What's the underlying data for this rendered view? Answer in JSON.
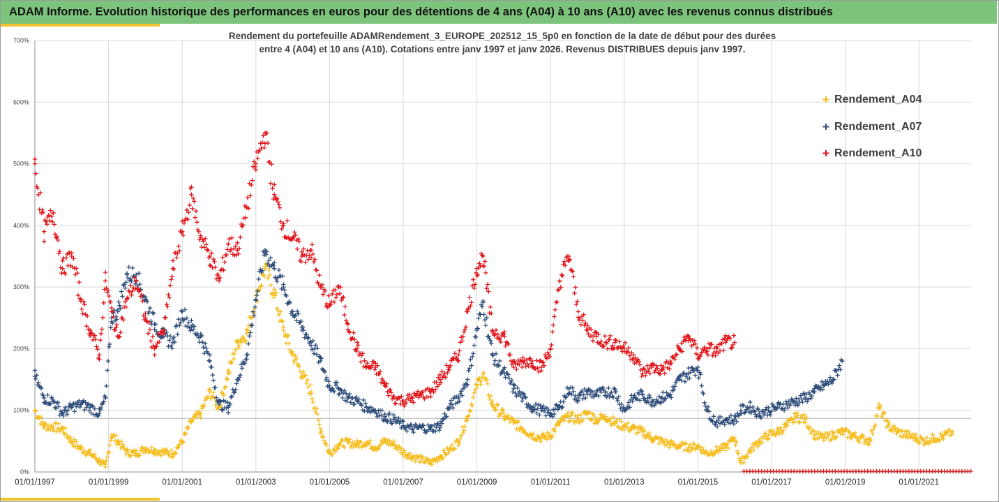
{
  "header": {
    "title": "ADAM Informe. Evolution historique des performances en euros pour des détentions de 4 ans (A04) à 10 ans (A10) avec les revenus connus distribués"
  },
  "colors": {
    "banner": "#7cc47c",
    "accent": "#f2c12e",
    "A04": "#f5bd1f",
    "A07": "#2f4d7a",
    "A10": "#e0161b"
  },
  "chart_data": {
    "type": "scatter",
    "title_lines": [
      "Rendement du portefeuille ADAMRendement_3_EUROPE_202512_15_5p0  en fonction de la date de début pour des durées",
      "entre 4 (A04) et 10 ans (A10). Cotations entre janv 1997 et janv 2026. Revenus DISTRIBUES depuis janv 1997."
    ],
    "x_type": "date",
    "xlim": [
      "1997-01-01",
      "2022-06-01"
    ],
    "x_ticks": [
      "01/01/1997",
      "01/01/1999",
      "01/01/2001",
      "01/01/2003",
      "01/01/2005",
      "01/01/2007",
      "01/01/2009",
      "01/01/2011",
      "01/01/2013",
      "01/01/2015",
      "01/01/2017",
      "01/01/2019",
      "01/01/2021"
    ],
    "ylim": [
      0,
      7
    ],
    "y_ticks": [
      "0%",
      "100%",
      "200%",
      "300%",
      "400%",
      "500%",
      "600%",
      "700%"
    ],
    "y_tick_values": [
      0,
      1,
      2,
      3,
      4,
      5,
      6,
      7
    ],
    "grid": true,
    "legend_position": "right",
    "marker": "+",
    "series": [
      {
        "name": "Rendement_A04",
        "color": "#f5bd1f",
        "points": [
          [
            "1997-01",
            1.0
          ],
          [
            "1997-04",
            0.75
          ],
          [
            "1997-07",
            0.73
          ],
          [
            "1997-10",
            0.7
          ],
          [
            "1998-01",
            0.5
          ],
          [
            "1998-04",
            0.38
          ],
          [
            "1998-07",
            0.3
          ],
          [
            "1998-10",
            0.18
          ],
          [
            "1998-12",
            0.08
          ],
          [
            "1999-02",
            0.6
          ],
          [
            "1999-04",
            0.5
          ],
          [
            "1999-07",
            0.32
          ],
          [
            "1999-10",
            0.3
          ],
          [
            "2000-01",
            0.38
          ],
          [
            "2000-04",
            0.35
          ],
          [
            "2000-07",
            0.32
          ],
          [
            "2000-10",
            0.3
          ],
          [
            "2001-01",
            0.5
          ],
          [
            "2001-04",
            0.82
          ],
          [
            "2001-07",
            0.95
          ],
          [
            "2001-10",
            1.3
          ],
          [
            "2002-01",
            1.05
          ],
          [
            "2002-04",
            1.6
          ],
          [
            "2002-07",
            2.1
          ],
          [
            "2002-10",
            2.25
          ],
          [
            "2003-01",
            2.8
          ],
          [
            "2003-04",
            3.3
          ],
          [
            "2003-07",
            2.9
          ],
          [
            "2003-10",
            2.3
          ],
          [
            "2004-01",
            1.9
          ],
          [
            "2004-04",
            1.6
          ],
          [
            "2004-07",
            1.3
          ],
          [
            "2004-10",
            0.7
          ],
          [
            "2005-01",
            0.3
          ],
          [
            "2005-04",
            0.45
          ],
          [
            "2005-07",
            0.48
          ],
          [
            "2005-10",
            0.45
          ],
          [
            "2006-01",
            0.48
          ],
          [
            "2006-04",
            0.4
          ],
          [
            "2006-07",
            0.5
          ],
          [
            "2006-10",
            0.45
          ],
          [
            "2007-01",
            0.32
          ],
          [
            "2007-04",
            0.25
          ],
          [
            "2007-07",
            0.2
          ],
          [
            "2007-10",
            0.15
          ],
          [
            "2008-01",
            0.25
          ],
          [
            "2008-04",
            0.35
          ],
          [
            "2008-07",
            0.5
          ],
          [
            "2008-10",
            0.9
          ],
          [
            "2009-01",
            1.4
          ],
          [
            "2009-03",
            1.6
          ],
          [
            "2009-06",
            1.1
          ],
          [
            "2009-10",
            0.9
          ],
          [
            "2010-01",
            0.8
          ],
          [
            "2010-04",
            0.7
          ],
          [
            "2010-07",
            0.6
          ],
          [
            "2010-10",
            0.55
          ],
          [
            "2011-01",
            0.6
          ],
          [
            "2011-04",
            0.8
          ],
          [
            "2011-07",
            0.9
          ],
          [
            "2011-10",
            0.85
          ],
          [
            "2012-01",
            0.95
          ],
          [
            "2012-04",
            0.85
          ],
          [
            "2012-07",
            0.9
          ],
          [
            "2012-10",
            0.8
          ],
          [
            "2013-01",
            0.75
          ],
          [
            "2013-04",
            0.7
          ],
          [
            "2013-07",
            0.65
          ],
          [
            "2013-10",
            0.55
          ],
          [
            "2014-01",
            0.5
          ],
          [
            "2014-04",
            0.45
          ],
          [
            "2014-07",
            0.42
          ],
          [
            "2014-10",
            0.4
          ],
          [
            "2015-01",
            0.42
          ],
          [
            "2015-04",
            0.3
          ],
          [
            "2015-07",
            0.35
          ],
          [
            "2015-10",
            0.4
          ],
          [
            "2016-01",
            0.55
          ],
          [
            "2016-03",
            0.15
          ],
          [
            "2016-06",
            0.35
          ],
          [
            "2016-09",
            0.5
          ],
          [
            "2016-12",
            0.6
          ],
          [
            "2017-03",
            0.65
          ],
          [
            "2017-06",
            0.75
          ],
          [
            "2017-09",
            0.9
          ],
          [
            "2017-12",
            0.85
          ],
          [
            "2018-03",
            0.6
          ],
          [
            "2018-06",
            0.55
          ],
          [
            "2018-09",
            0.6
          ],
          [
            "2018-12",
            0.65
          ],
          [
            "2019-03",
            0.6
          ],
          [
            "2019-06",
            0.55
          ],
          [
            "2019-09",
            0.5
          ],
          [
            "2019-12",
            1.05
          ],
          [
            "2020-03",
            0.75
          ],
          [
            "2020-06",
            0.65
          ],
          [
            "2020-09",
            0.6
          ],
          [
            "2020-12",
            0.55
          ],
          [
            "2021-03",
            0.5
          ],
          [
            "2021-06",
            0.55
          ],
          [
            "2021-09",
            0.58
          ],
          [
            "2021-12",
            0.65
          ]
        ]
      },
      {
        "name": "Rendement_A07",
        "color": "#2f4d7a",
        "points": [
          [
            "1997-01",
            1.55
          ],
          [
            "1997-04",
            1.2
          ],
          [
            "1997-07",
            1.15
          ],
          [
            "1997-10",
            0.95
          ],
          [
            "1998-01",
            1.05
          ],
          [
            "1998-04",
            1.1
          ],
          [
            "1998-07",
            1.05
          ],
          [
            "1998-10",
            0.95
          ],
          [
            "1998-12",
            1.2
          ],
          [
            "1999-02",
            2.5
          ],
          [
            "1999-04",
            2.6
          ],
          [
            "1999-07",
            3.2
          ],
          [
            "1999-10",
            3.2
          ],
          [
            "2000-01",
            2.8
          ],
          [
            "2000-04",
            2.4
          ],
          [
            "2000-07",
            2.2
          ],
          [
            "2000-10",
            2.1
          ],
          [
            "2001-01",
            2.6
          ],
          [
            "2001-04",
            2.35
          ],
          [
            "2001-07",
            2.2
          ],
          [
            "2001-10",
            1.8
          ],
          [
            "2002-01",
            1.1
          ],
          [
            "2002-04",
            1.05
          ],
          [
            "2002-07",
            1.5
          ],
          [
            "2002-10",
            1.9
          ],
          [
            "2003-01",
            2.8
          ],
          [
            "2003-04",
            3.6
          ],
          [
            "2003-07",
            3.3
          ],
          [
            "2003-10",
            3.0
          ],
          [
            "2004-01",
            2.6
          ],
          [
            "2004-04",
            2.35
          ],
          [
            "2004-07",
            2.1
          ],
          [
            "2004-10",
            1.8
          ],
          [
            "2005-01",
            1.4
          ],
          [
            "2005-04",
            1.35
          ],
          [
            "2005-07",
            1.2
          ],
          [
            "2005-10",
            1.15
          ],
          [
            "2006-01",
            1.05
          ],
          [
            "2006-04",
            1.0
          ],
          [
            "2006-07",
            0.9
          ],
          [
            "2006-10",
            0.85
          ],
          [
            "2007-01",
            0.75
          ],
          [
            "2007-04",
            0.7
          ],
          [
            "2007-07",
            0.72
          ],
          [
            "2007-10",
            0.7
          ],
          [
            "2008-01",
            0.75
          ],
          [
            "2008-04",
            1.05
          ],
          [
            "2008-07",
            1.2
          ],
          [
            "2008-10",
            1.5
          ],
          [
            "2009-01",
            2.3
          ],
          [
            "2009-03",
            2.75
          ],
          [
            "2009-06",
            1.9
          ],
          [
            "2009-10",
            1.6
          ],
          [
            "2010-01",
            1.35
          ],
          [
            "2010-04",
            1.2
          ],
          [
            "2010-07",
            1.05
          ],
          [
            "2010-10",
            1.0
          ],
          [
            "2011-01",
            0.95
          ],
          [
            "2011-04",
            1.05
          ],
          [
            "2011-07",
            1.35
          ],
          [
            "2011-10",
            1.2
          ],
          [
            "2012-01",
            1.3
          ],
          [
            "2012-04",
            1.25
          ],
          [
            "2012-07",
            1.3
          ],
          [
            "2012-10",
            1.3
          ],
          [
            "2013-01",
            1.0
          ],
          [
            "2013-04",
            1.2
          ],
          [
            "2013-07",
            1.25
          ],
          [
            "2013-10",
            1.15
          ],
          [
            "2014-01",
            1.2
          ],
          [
            "2014-04",
            1.25
          ],
          [
            "2014-07",
            1.5
          ],
          [
            "2014-10",
            1.6
          ],
          [
            "2015-01",
            1.7
          ],
          [
            "2015-04",
            1.0
          ],
          [
            "2015-07",
            0.8
          ],
          [
            "2015-10",
            0.85
          ],
          [
            "2016-01",
            0.85
          ],
          [
            "2016-03",
            1.0
          ],
          [
            "2016-06",
            1.05
          ],
          [
            "2016-09",
            0.95
          ],
          [
            "2016-12",
            1.0
          ],
          [
            "2017-03",
            1.05
          ],
          [
            "2017-06",
            1.1
          ],
          [
            "2017-09",
            1.15
          ],
          [
            "2017-12",
            1.2
          ],
          [
            "2018-03",
            1.3
          ],
          [
            "2018-06",
            1.4
          ],
          [
            "2018-09",
            1.5
          ],
          [
            "2018-12",
            1.8
          ]
        ]
      },
      {
        "name": "Rendement_A10",
        "color": "#e0161b",
        "points": [
          [
            "1997-01",
            5.0
          ],
          [
            "1997-04",
            3.9
          ],
          [
            "1997-07",
            4.2
          ],
          [
            "1997-10",
            3.3
          ],
          [
            "1998-01",
            3.5
          ],
          [
            "1998-04",
            2.8
          ],
          [
            "1998-07",
            2.3
          ],
          [
            "1998-10",
            1.9
          ],
          [
            "1998-12",
            3.1
          ],
          [
            "1999-02",
            2.6
          ],
          [
            "1999-04",
            2.2
          ],
          [
            "1999-07",
            2.8
          ],
          [
            "1999-10",
            3.1
          ],
          [
            "2000-01",
            2.5
          ],
          [
            "2000-04",
            2.0
          ],
          [
            "2000-07",
            2.3
          ],
          [
            "2000-10",
            3.3
          ],
          [
            "2001-01",
            3.9
          ],
          [
            "2001-04",
            4.5
          ],
          [
            "2001-07",
            3.8
          ],
          [
            "2001-10",
            3.5
          ],
          [
            "2002-01",
            3.1
          ],
          [
            "2002-04",
            3.7
          ],
          [
            "2002-07",
            3.6
          ],
          [
            "2002-10",
            4.3
          ],
          [
            "2003-01",
            5.0
          ],
          [
            "2003-04",
            5.5
          ],
          [
            "2003-07",
            4.5
          ],
          [
            "2003-10",
            4.0
          ],
          [
            "2004-01",
            3.8
          ],
          [
            "2004-04",
            3.5
          ],
          [
            "2004-07",
            3.6
          ],
          [
            "2004-10",
            3.0
          ],
          [
            "2005-01",
            2.7
          ],
          [
            "2005-04",
            3.0
          ],
          [
            "2005-07",
            2.4
          ],
          [
            "2005-10",
            2.0
          ],
          [
            "2006-01",
            1.7
          ],
          [
            "2006-04",
            1.7
          ],
          [
            "2006-07",
            1.4
          ],
          [
            "2006-10",
            1.2
          ],
          [
            "2007-01",
            1.15
          ],
          [
            "2007-04",
            1.2
          ],
          [
            "2007-07",
            1.25
          ],
          [
            "2007-10",
            1.3
          ],
          [
            "2008-01",
            1.5
          ],
          [
            "2008-04",
            1.7
          ],
          [
            "2008-07",
            1.9
          ],
          [
            "2008-10",
            2.6
          ],
          [
            "2009-01",
            3.3
          ],
          [
            "2009-03",
            3.5
          ],
          [
            "2009-06",
            2.3
          ],
          [
            "2009-10",
            2.2
          ],
          [
            "2010-01",
            1.7
          ],
          [
            "2010-04",
            1.8
          ],
          [
            "2010-07",
            1.8
          ],
          [
            "2010-10",
            1.7
          ],
          [
            "2011-01",
            2.0
          ],
          [
            "2011-04",
            3.1
          ],
          [
            "2011-07",
            3.5
          ],
          [
            "2011-10",
            2.6
          ],
          [
            "2012-01",
            2.3
          ],
          [
            "2012-04",
            2.2
          ],
          [
            "2012-07",
            2.1
          ],
          [
            "2012-10",
            2.1
          ],
          [
            "2013-01",
            2.0
          ],
          [
            "2013-04",
            1.9
          ],
          [
            "2013-07",
            1.6
          ],
          [
            "2013-10",
            1.7
          ],
          [
            "2014-01",
            1.65
          ],
          [
            "2014-04",
            1.75
          ],
          [
            "2014-07",
            2.0
          ],
          [
            "2014-10",
            2.2
          ],
          [
            "2015-01",
            1.9
          ],
          [
            "2015-04",
            2.0
          ],
          [
            "2015-07",
            1.95
          ],
          [
            "2015-10",
            2.1
          ],
          [
            "2016-01",
            2.1
          ]
        ]
      }
    ],
    "zero_band": {
      "series": "Rendement_A10",
      "from": "2016-04",
      "to": "2022-06",
      "value": 0
    }
  }
}
